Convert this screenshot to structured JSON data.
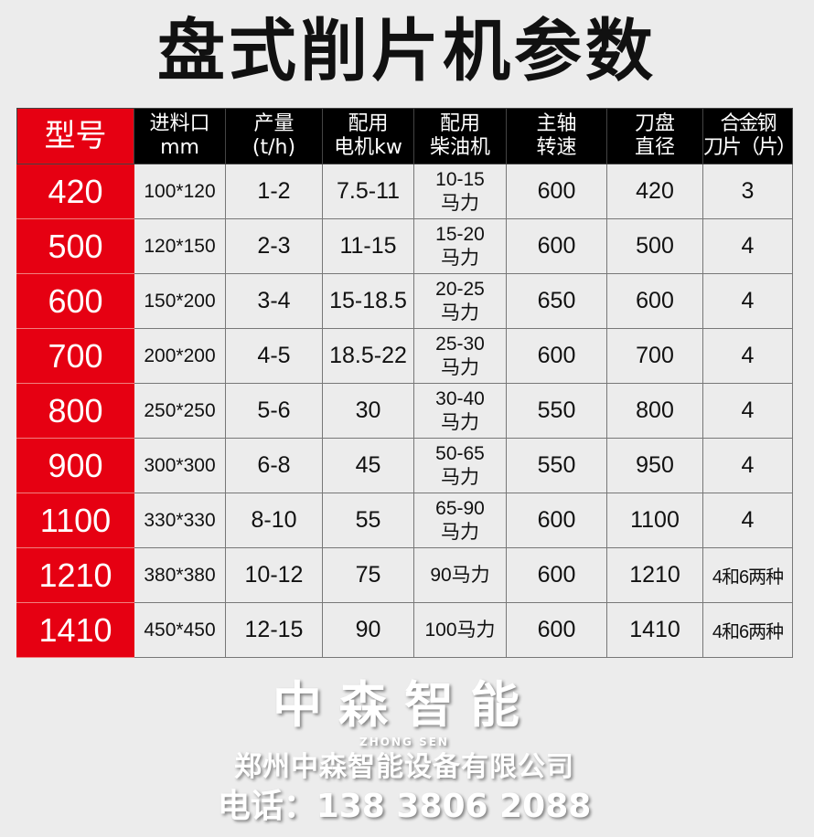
{
  "title": "盘式削片机参数",
  "headers": [
    "型号",
    "进料口\nmm",
    "产量\n(t/h)",
    "配用\n电机kw",
    "配用\n柴油机",
    "主轴\n转速",
    "刀盘\n直径",
    "合金钢\n刀片（片）"
  ],
  "rows": [
    [
      "420",
      "100*120",
      "1-2",
      "7.5-11",
      "10-15\n马力",
      "600",
      "420",
      "3"
    ],
    [
      "500",
      "120*150",
      "2-3",
      "11-15",
      "15-20\n马力",
      "600",
      "500",
      "4"
    ],
    [
      "600",
      "150*200",
      "3-4",
      "15-18.5",
      "20-25\n马力",
      "650",
      "600",
      "4"
    ],
    [
      "700",
      "200*200",
      "4-5",
      "18.5-22",
      "25-30\n马力",
      "600",
      "700",
      "4"
    ],
    [
      "800",
      "250*250",
      "5-6",
      "30",
      "30-40\n马力",
      "550",
      "800",
      "4"
    ],
    [
      "900",
      "300*300",
      "6-8",
      "45",
      "50-65\n马力",
      "550",
      "950",
      "4"
    ],
    [
      "1100",
      "330*330",
      "8-10",
      "55",
      "65-90\n马力",
      "600",
      "1100",
      "4"
    ],
    [
      "1210",
      "380*380",
      "10-12",
      "75",
      "90马力",
      "600",
      "1210",
      "4和6两种"
    ],
    [
      "1410",
      "450*450",
      "12-15",
      "90",
      "100马力",
      "600",
      "1410",
      "4和6两种"
    ]
  ],
  "watermark": {
    "brand": "中森智能",
    "brand_en": "ZHONG SEN",
    "company": "郑州中森智能设备有限公司",
    "phone": "电话：138 3806 2088"
  },
  "colors": {
    "model_column": "#e60012",
    "header": "#000000",
    "background": "#ececec"
  }
}
